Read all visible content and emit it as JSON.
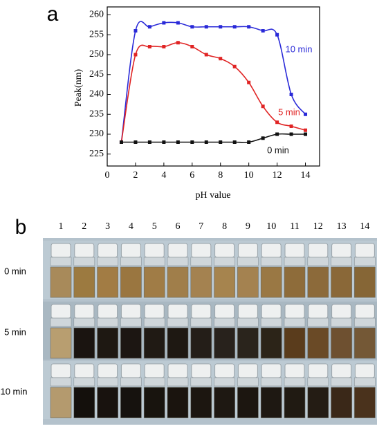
{
  "chart_data": {
    "type": "line",
    "panel_label": "a",
    "x_label": "pH value",
    "y_label": "Peak(nm)",
    "x": [
      1,
      2,
      3,
      4,
      5,
      6,
      7,
      8,
      9,
      10,
      11,
      12,
      13,
      14
    ],
    "series": [
      {
        "name": "10 min",
        "color": "#2a2ad8",
        "values": [
          228,
          256,
          257,
          258,
          258,
          257,
          257,
          257,
          257,
          257,
          256,
          255,
          240,
          235
        ]
      },
      {
        "name": "5 min",
        "color": "#e02424",
        "values": [
          228,
          250,
          252,
          252,
          253,
          252,
          250,
          249,
          247,
          243,
          237,
          233,
          232,
          231
        ]
      },
      {
        "name": "0 min",
        "color": "#111111",
        "values": [
          228,
          228,
          228,
          228,
          228,
          228,
          228,
          228,
          228,
          228,
          229,
          230,
          230,
          230
        ]
      }
    ],
    "xlim": [
      0,
      15
    ],
    "xticks": [
      0,
      2,
      4,
      6,
      8,
      10,
      12,
      14
    ],
    "ylim": [
      222,
      262
    ],
    "yticks": [
      225,
      230,
      235,
      240,
      245,
      250,
      255,
      260
    ]
  },
  "photo": {
    "panel_label": "b",
    "columns": [
      "1",
      "2",
      "3",
      "4",
      "5",
      "6",
      "7",
      "8",
      "9",
      "10",
      "11",
      "12",
      "13",
      "14"
    ],
    "rows": [
      {
        "label": "0 min",
        "vial_colors": [
          "#a88a5a",
          "#9c7a40",
          "#a27c44",
          "#9a7640",
          "#a07c46",
          "#a07e4a",
          "#a48250",
          "#a6844e",
          "#a48250",
          "#9a7844",
          "#8e6c3a",
          "#8c6a3a",
          "#8a6838",
          "#866636"
        ]
      },
      {
        "label": "5 min",
        "vial_colors": [
          "#b89e70",
          "#1a1410",
          "#1e1812",
          "#1c1612",
          "#201a14",
          "#1e1812",
          "#241e18",
          "#28221c",
          "#2a241c",
          "#2c2418",
          "#5a3c1c",
          "#6a4a26",
          "#6e5030",
          "#745836"
        ]
      },
      {
        "label": "10 min",
        "vial_colors": [
          "#b49a6e",
          "#14100c",
          "#18120e",
          "#16120e",
          "#18140e",
          "#1a140e",
          "#1c1610",
          "#1e1812",
          "#1c1610",
          "#1e1812",
          "#201a12",
          "#241c14",
          "#3a2818",
          "#4a321c"
        ]
      }
    ]
  }
}
